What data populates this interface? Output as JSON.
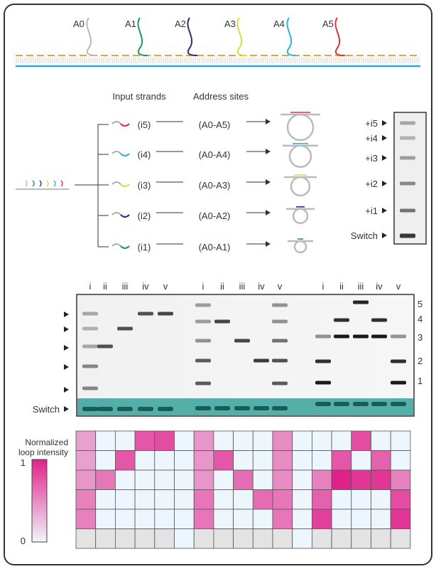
{
  "top_diagram": {
    "address_labels": [
      "A0",
      "A1",
      "A2",
      "A3",
      "A4",
      "A5"
    ],
    "strand_colors": [
      "#b8b8b8",
      "#1a9a5a",
      "#2a2f7a",
      "#d9dc4a",
      "#29b6d8",
      "#d8343a"
    ],
    "backbone_color": "#e8a23a",
    "template_color": "#29a9e0"
  },
  "scheme": {
    "header_inputs": "Input strands",
    "header_sites": "Address sites",
    "rows": [
      {
        "input": "(i5)",
        "sites": "(A0-A5)",
        "color": "#d8343a"
      },
      {
        "input": "(i4)",
        "sites": "(A0-A4)",
        "color": "#29b6d8"
      },
      {
        "input": "(i3)",
        "sites": "(A0-A3)",
        "color": "#d9dc4a"
      },
      {
        "input": "(i2)",
        "sites": "(A0-A2)",
        "color": "#2a2f7a"
      },
      {
        "input": "(i1)",
        "sites": "(A0-A1)",
        "color": "#1a9a5a"
      }
    ]
  },
  "ladder_gel": {
    "labels": [
      "+i5",
      "+i4",
      "+i3",
      "+i2",
      "+i1",
      "Switch"
    ]
  },
  "main_gel": {
    "lane_labels": [
      "i",
      "ii",
      "iii",
      "iv",
      "v",
      "i",
      "ii",
      "iii",
      "iv",
      "v",
      "i",
      "ii",
      "iii",
      "iv",
      "v"
    ],
    "level_labels": [
      "5",
      "4",
      "3",
      "2",
      "1"
    ],
    "switch_label": "Switch",
    "switch_color": "#2a9d94",
    "groups": [
      {
        "lanes": [
          [
            [
              5,
              0.35
            ],
            [
              4,
              0.3
            ],
            [
              3,
              0.35
            ],
            [
              2,
              0.5
            ],
            [
              1,
              0.5
            ]
          ],
          [
            [
              3,
              0.75
            ]
          ],
          [
            [
              4,
              0.75
            ]
          ],
          [
            [
              5,
              0.75
            ]
          ],
          [
            [
              5,
              0.8
            ]
          ]
        ]
      },
      {
        "lanes": [
          [
            [
              5,
              0.4
            ],
            [
              4,
              0.4
            ],
            [
              3,
              0.45
            ],
            [
              2,
              0.7
            ],
            [
              1,
              0.7
            ]
          ],
          [
            [
              4,
              0.8
            ]
          ],
          [
            [
              3,
              0.8
            ]
          ],
          [
            [
              2,
              0.85
            ]
          ],
          [
            [
              5,
              0.45
            ],
            [
              4,
              0.45
            ],
            [
              3,
              0.6
            ],
            [
              2,
              0.75
            ],
            [
              1,
              0.7
            ]
          ]
        ]
      },
      {
        "lanes": [
          [
            [
              3,
              0.45
            ],
            [
              2,
              0.9
            ],
            [
              1,
              1.0
            ]
          ],
          [
            [
              4,
              0.9
            ],
            [
              3,
              1.0
            ]
          ],
          [
            [
              5,
              0.95
            ],
            [
              3,
              1.0
            ]
          ],
          [
            [
              4,
              0.9
            ],
            [
              3,
              1.0
            ]
          ],
          [
            [
              3,
              0.45
            ],
            [
              2,
              0.9
            ],
            [
              1,
              1.0
            ]
          ]
        ]
      }
    ]
  },
  "heatmap": {
    "legend_title": [
      "Normalized",
      "loop intensity"
    ],
    "scale_max": "1",
    "scale_min": "0",
    "color_min": "#eef6fd",
    "color_max": "#e0218a",
    "missing_color": "#e3e3e3",
    "columns": [
      [
        0.4,
        0.4,
        0.45,
        0.55,
        0.55,
        null
      ],
      [
        0,
        0,
        0.6,
        0,
        0,
        null
      ],
      [
        0,
        0.75,
        0,
        0,
        0,
        null
      ],
      [
        0.75,
        0,
        0,
        0,
        0,
        null
      ],
      [
        0.8,
        0,
        0,
        0,
        0,
        null
      ],
      [
        0,
        0,
        0,
        0,
        0,
        0
      ],
      [
        0.45,
        0.45,
        0.45,
        0.6,
        0.6,
        null
      ],
      [
        0,
        0.75,
        0,
        0,
        0,
        null
      ],
      [
        0,
        0,
        0.65,
        0,
        0,
        null
      ],
      [
        0,
        0,
        0,
        0.65,
        0,
        null
      ],
      [
        0.5,
        0.5,
        0.5,
        0.6,
        0.6,
        null
      ],
      [
        0,
        0,
        0,
        0,
        0,
        0
      ],
      [
        0,
        0,
        0.55,
        0.7,
        0.85,
        null
      ],
      [
        0,
        0.75,
        1.0,
        0,
        0,
        null
      ],
      [
        0.8,
        0,
        0.9,
        0,
        0,
        null
      ],
      [
        0,
        0.7,
        0.9,
        0,
        0,
        null
      ],
      [
        0,
        0,
        0.55,
        0.8,
        0.9,
        null
      ]
    ]
  }
}
